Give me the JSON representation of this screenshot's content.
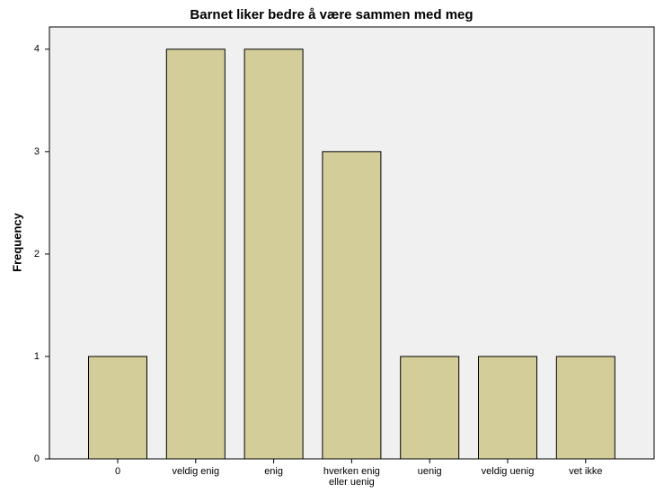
{
  "chart_data": {
    "type": "bar",
    "title": "Barnet liker bedre å være sammen med meg",
    "y_label": "Frequency",
    "categories": [
      "0",
      "veldig enig",
      "enig",
      "hverken enig eller uenig",
      "uenig",
      "veldig  uenig",
      "vet ikke"
    ],
    "values": [
      1,
      4,
      4,
      3,
      1,
      1,
      1
    ],
    "color": "#d3ce99",
    "ylim": [
      0,
      4.2
    ],
    "yticks": [
      0,
      1,
      2,
      3,
      4
    ],
    "grid": false
  }
}
